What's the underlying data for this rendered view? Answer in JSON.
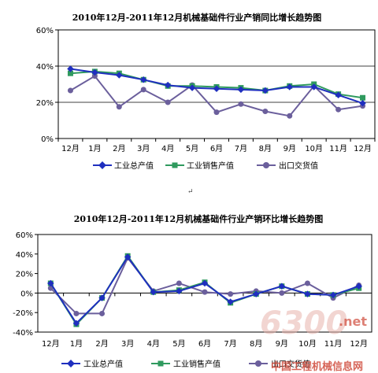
{
  "paragraph_mark": "↵",
  "watermark": {
    "number": "6300",
    "suffix": ".net",
    "site_name": "中国工程机械信息网"
  },
  "colors": {
    "gross": "#1f2fbf",
    "sales": "#2f9a5e",
    "export": "#6b5f9c"
  },
  "chart_data": [
    {
      "type": "line",
      "title": "2010年12月-2011年12月机械基础件行业产销同比增长趋势图",
      "categories": [
        "12月",
        "1月",
        "2月",
        "3月",
        "4月",
        "5月",
        "6月",
        "7月",
        "8月",
        "9月",
        "10月",
        "11月",
        "12月"
      ],
      "ylim": [
        0,
        60
      ],
      "yticks": [
        0,
        20,
        40,
        60
      ],
      "ytick_labels": [
        "0%",
        "20%",
        "40%",
        "60%"
      ],
      "grid": "horizontal",
      "legend_position": "bottom",
      "series": [
        {
          "name": "工业总产值",
          "marker": "diamond",
          "color": "#1f2fbf",
          "values": [
            38.5,
            36.5,
            35,
            32.5,
            29.5,
            28,
            27.5,
            27,
            26.5,
            28.5,
            28.5,
            24,
            19.5
          ]
        },
        {
          "name": "工业销售产值",
          "marker": "square",
          "color": "#2f9a5e",
          "values": [
            36,
            37,
            36,
            32.5,
            29,
            29,
            28.5,
            28,
            26.5,
            29,
            30,
            24.5,
            22.5
          ]
        },
        {
          "name": "出口交货值",
          "marker": "circle",
          "color": "#6b5f9c",
          "values": [
            26.5,
            34.5,
            17.5,
            27,
            20,
            29.5,
            14.5,
            19,
            15,
            12.5,
            29,
            16,
            18
          ]
        }
      ]
    },
    {
      "type": "line",
      "title": "2010年12月-2011年12月机械基础件行业产销环比增长趋势图",
      "categories": [
        "12月",
        "1月",
        "2月",
        "3月",
        "4月",
        "5月",
        "6月",
        "7月",
        "8月",
        "9月",
        "10月",
        "11月",
        "12月"
      ],
      "ylim": [
        -40,
        60
      ],
      "yticks": [
        -40,
        -20,
        0,
        20,
        40,
        60
      ],
      "ytick_labels": [
        "-40%",
        "-20%",
        "0%",
        "20%",
        "40%",
        "60%"
      ],
      "grid": "none",
      "legend_position": "bottom",
      "series": [
        {
          "name": "工业总产值",
          "marker": "diamond",
          "color": "#1f2fbf",
          "values": [
            10,
            -31,
            -5,
            37,
            1,
            2,
            10,
            -9,
            -1,
            7,
            -1,
            -2,
            7
          ]
        },
        {
          "name": "工业销售产值",
          "marker": "square",
          "color": "#2f9a5e",
          "values": [
            10,
            -32,
            -5,
            38,
            1,
            3,
            11,
            -10,
            -1,
            7,
            -1,
            -2,
            5
          ]
        },
        {
          "name": "出口交货值",
          "marker": "circle",
          "color": "#6b5f9c",
          "values": [
            5,
            -21,
            -21,
            36,
            2,
            10,
            1,
            -1,
            2,
            0,
            10,
            -5,
            8
          ]
        }
      ]
    }
  ]
}
